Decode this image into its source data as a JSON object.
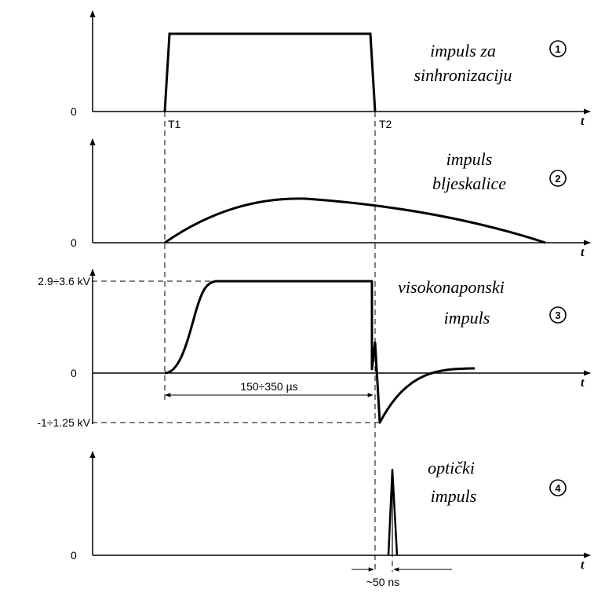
{
  "zero_label": "0",
  "time_label": "t",
  "t1_label": "T1",
  "t2_label": "T2",
  "pulse1": {
    "number": "1",
    "title_line1": "impuls za",
    "title_line2": "sinhronizaciju"
  },
  "pulse2": {
    "number": "2",
    "title_line1": "impuls",
    "title_line2": "bljeskalice"
  },
  "pulse3": {
    "number": "3",
    "title_line1": "visokonaponski",
    "title_line2": "impuls",
    "high_level": "2.9÷3.6 kV",
    "low_level": "-1÷1.25 kV",
    "duration": "150÷350 µs"
  },
  "pulse4": {
    "number": "4",
    "title_line1": "optički",
    "title_line2": "impuls",
    "delay": "~50 ns"
  }
}
